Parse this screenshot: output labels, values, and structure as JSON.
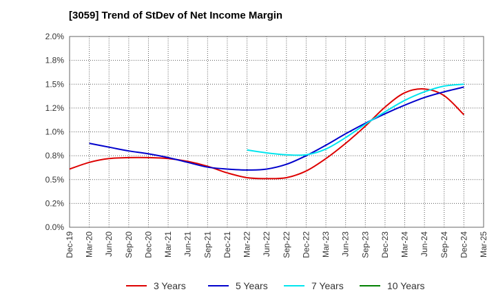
{
  "chart_data": {
    "type": "line",
    "title": "[3059]  Trend of StDev of Net Income Margin",
    "xlabel": "",
    "ylabel": "",
    "ylim": [
      0,
      2.0
    ],
    "y_ticks": [
      {
        "value": 0.0,
        "label": "0.0%"
      },
      {
        "value": 0.25,
        "label": "0.2%"
      },
      {
        "value": 0.5,
        "label": "0.5%"
      },
      {
        "value": 0.75,
        "label": "0.8%"
      },
      {
        "value": 1.0,
        "label": "1.0%"
      },
      {
        "value": 1.25,
        "label": "1.2%"
      },
      {
        "value": 1.5,
        "label": "1.5%"
      },
      {
        "value": 1.75,
        "label": "1.8%"
      },
      {
        "value": 2.0,
        "label": "2.0%"
      }
    ],
    "x_tick_labels": [
      "Dec-19",
      "Mar-20",
      "Jun-20",
      "Sep-20",
      "Dec-20",
      "Mar-21",
      "Jun-21",
      "Sep-21",
      "Dec-21",
      "Mar-22",
      "Jun-22",
      "Sep-22",
      "Dec-22",
      "Mar-23",
      "Jun-23",
      "Sep-23",
      "Dec-23",
      "Mar-24",
      "Jun-24",
      "Sep-24",
      "Dec-24",
      "Mar-25"
    ],
    "grid": true,
    "legend_position": "bottom",
    "series": [
      {
        "name": "3 Years",
        "color": "#dd0000",
        "values": [
          0.61,
          0.68,
          0.72,
          0.73,
          0.73,
          0.72,
          0.69,
          0.64,
          0.57,
          0.52,
          0.51,
          0.52,
          0.59,
          0.72,
          0.88,
          1.06,
          1.26,
          1.41,
          1.45,
          1.38,
          1.18,
          null
        ]
      },
      {
        "name": "5 Years",
        "color": "#0000cc",
        "values": [
          null,
          0.88,
          0.84,
          0.8,
          0.77,
          0.73,
          0.68,
          0.63,
          0.61,
          0.6,
          0.61,
          0.66,
          0.75,
          0.86,
          0.98,
          1.09,
          1.19,
          1.28,
          1.36,
          1.42,
          1.47,
          null
        ]
      },
      {
        "name": "7 Years",
        "color": "#00e5ee",
        "values": [
          null,
          null,
          null,
          null,
          null,
          null,
          null,
          null,
          null,
          0.81,
          0.78,
          0.76,
          0.76,
          0.82,
          0.94,
          1.08,
          1.21,
          1.33,
          1.42,
          1.48,
          1.5,
          null
        ]
      },
      {
        "name": "10 Years",
        "color": "#008000",
        "values": [
          null,
          null,
          null,
          null,
          null,
          null,
          null,
          null,
          null,
          null,
          null,
          null,
          null,
          null,
          null,
          null,
          null,
          null,
          null,
          null,
          null,
          null
        ]
      }
    ]
  }
}
